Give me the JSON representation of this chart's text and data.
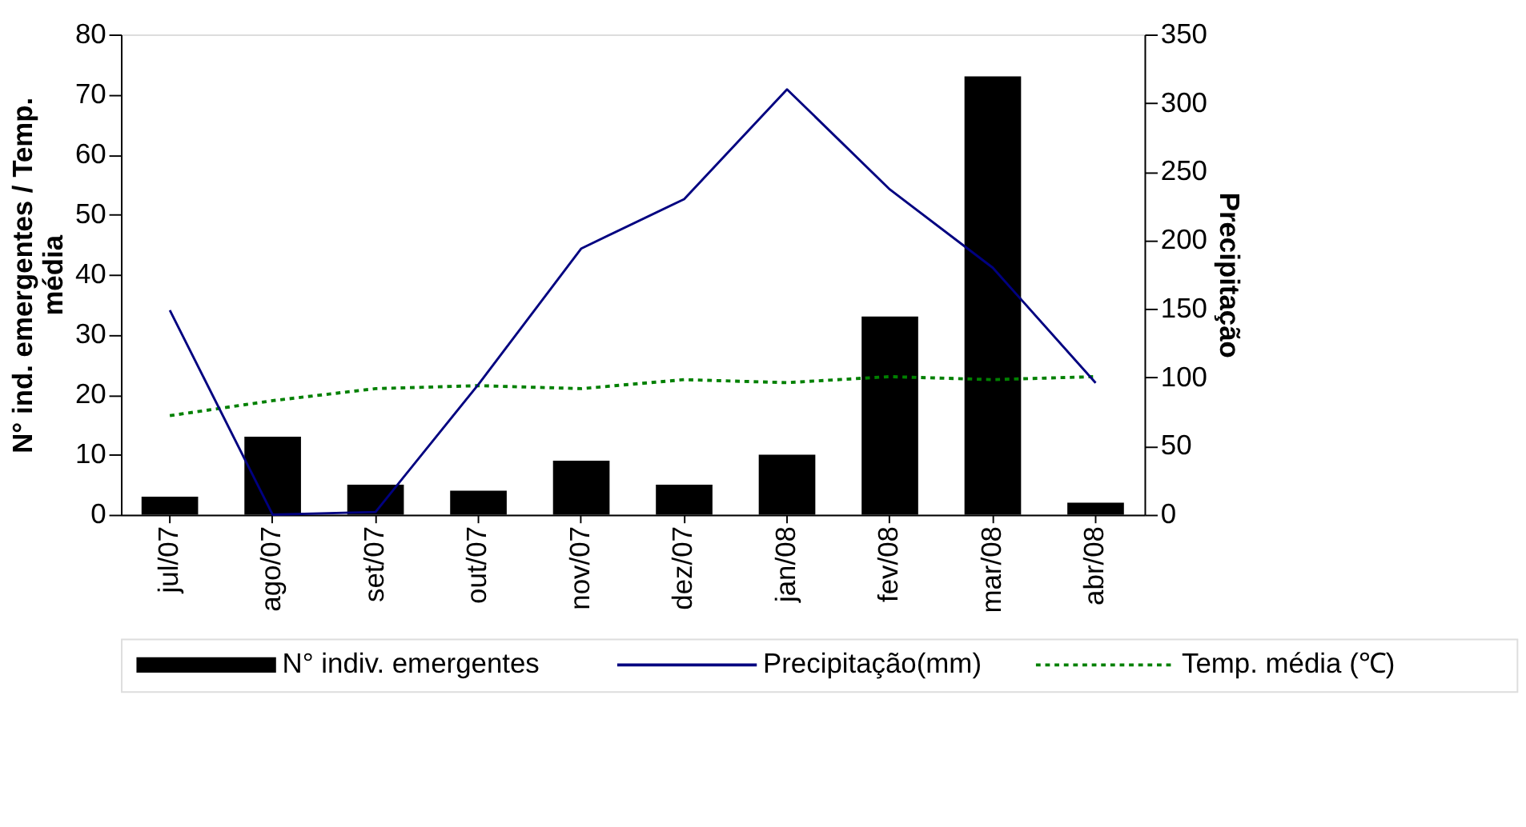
{
  "chart_data": {
    "type": "bar",
    "categories": [
      "jul/07",
      "ago/07",
      "set/07",
      "out/07",
      "nov/07",
      "dez/07",
      "jan/08",
      "fev/08",
      "mar/08",
      "abr/08"
    ],
    "ylabel": "N° ind. emergentes / Temp. média",
    "y2label": "Precipitação",
    "ylim": [
      0,
      80
    ],
    "yticks": [
      0,
      10,
      20,
      30,
      40,
      50,
      60,
      70,
      80
    ],
    "y2lim": [
      0,
      350
    ],
    "y2ticks": [
      0,
      50,
      100,
      150,
      200,
      250,
      300,
      350
    ],
    "legend": "bottom",
    "grid": false,
    "series": [
      {
        "name": "N° indiv. emergentes",
        "color": "#000000",
        "values": [
          3,
          13,
          5,
          4,
          9,
          5,
          10,
          33,
          73,
          2
        ]
      },
      {
        "name": "Precipitação(mm)",
        "type": "line",
        "axis": "y2",
        "line_style": "solid",
        "color": "#000080",
        "values": [
          149,
          0,
          2,
          95,
          194,
          230,
          310,
          237,
          180,
          96
        ]
      },
      {
        "name": "Temp. média (℃)",
        "type": "line",
        "line_style": "dotted",
        "color": "#008000",
        "values": [
          16.5,
          19,
          21,
          21.5,
          21,
          22.5,
          22,
          23,
          22.5,
          23
        ]
      }
    ]
  }
}
